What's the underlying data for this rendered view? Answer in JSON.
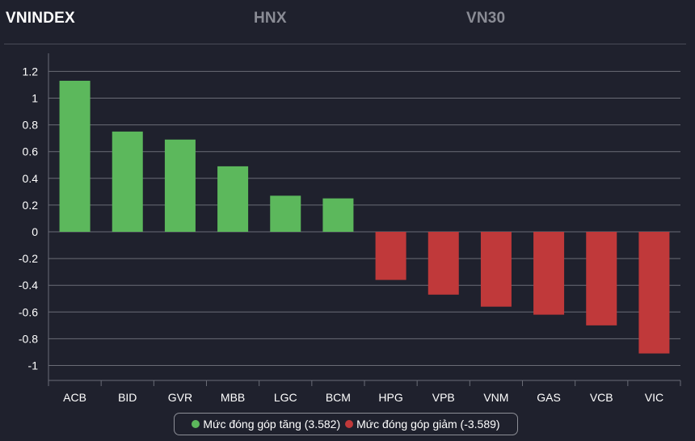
{
  "tabs": [
    {
      "label": "VNINDEX",
      "active": true
    },
    {
      "label": "HNX",
      "active": false
    },
    {
      "label": "VN30",
      "active": false
    }
  ],
  "colors": {
    "positive": "#5cb85c",
    "negative": "#c0393a",
    "grid": "#6a6c76",
    "axis_text": "#ffffff",
    "background": "#1f212d"
  },
  "legend": {
    "positive_label": "Mức đóng góp tăng (3.582)",
    "negative_label": "Mức đóng góp giảm (-3.589)"
  },
  "chart_data": {
    "type": "bar",
    "title": "",
    "xlabel": "",
    "ylabel": "",
    "ylim": [
      -1.1,
      1.3
    ],
    "yticks": [
      1.2,
      1,
      0.8,
      0.6,
      0.4,
      0.2,
      0,
      -0.2,
      -0.4,
      -0.6,
      -0.8,
      -1
    ],
    "categories": [
      "ACB",
      "BID",
      "GVR",
      "MBB",
      "LGC",
      "BCM",
      "HPG",
      "VPB",
      "VNM",
      "GAS",
      "VCB",
      "VIC"
    ],
    "values": [
      1.13,
      0.75,
      0.69,
      0.49,
      0.27,
      0.25,
      -0.36,
      -0.47,
      -0.56,
      -0.62,
      -0.7,
      -0.91
    ],
    "series": [
      {
        "name": "Mức đóng góp tăng (3.582)",
        "color": "#5cb85c"
      },
      {
        "name": "Mức đóng góp giảm (-3.589)",
        "color": "#c0393a"
      }
    ],
    "grid": true,
    "legend_position": "bottom-center"
  }
}
